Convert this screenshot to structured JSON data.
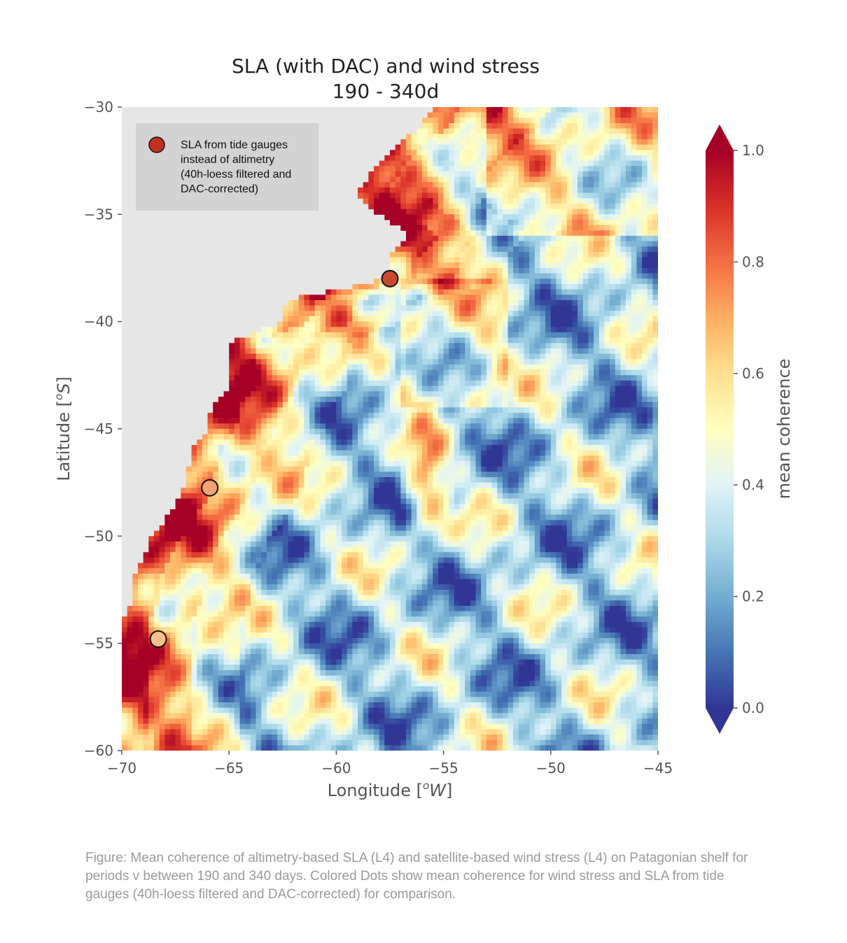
{
  "chart_data": {
    "type": "heatmap",
    "title_line1": "SLA (with DAC) and wind stress",
    "title_line2": "190 - 340d",
    "xlabel": "Longitude [$^oW$]",
    "xlabel_main": "Longitude [",
    "xlabel_sup": "o",
    "xlabel_unit": "W",
    "xlabel_end": "]",
    "ylabel_main": "Latitude [",
    "ylabel_sup": "o",
    "ylabel_unit": "S",
    "ylabel_end": "]",
    "xlim": [
      -70,
      -45
    ],
    "ylim": [
      -60,
      -30
    ],
    "xticks": [
      -70,
      -65,
      -60,
      -55,
      -50,
      -45
    ],
    "yticks": [
      -30,
      -35,
      -40,
      -45,
      -50,
      -55,
      -60
    ],
    "xtick_labels": [
      "−70",
      "−65",
      "−60",
      "−55",
      "−50",
      "−45"
    ],
    "ytick_labels": [
      "−30",
      "−35",
      "−40",
      "−45",
      "−50",
      "−55",
      "−60"
    ],
    "colorbar": {
      "label": "mean coherence",
      "range": [
        0.0,
        1.0
      ],
      "ticks": [
        0.0,
        0.2,
        0.4,
        0.6,
        0.8,
        1.0
      ],
      "tick_labels": [
        "0.0",
        "0.2",
        "0.4",
        "0.6",
        "0.8",
        "1.0"
      ],
      "colormap": "RdYlBu_r"
    },
    "legend": {
      "text_lines": [
        "SLA from tide gauges",
        "instead of altimetry",
        "(40h-loess filtered and",
        "DAC-corrected)"
      ],
      "position": "top-left",
      "marker_color": "#c3301f"
    },
    "tide_gauges": [
      {
        "lon": -57.5,
        "lat": -38.0,
        "coherence": 0.88,
        "color": "#c84a2d"
      },
      {
        "lon": -65.9,
        "lat": -47.75,
        "coherence": 0.72,
        "color": "#f3a271"
      },
      {
        "lon": -68.3,
        "lat": -54.8,
        "coherence": 0.66,
        "color": "#f7c08c"
      }
    ],
    "land_color": "#e6e6e6",
    "coast_boundary": [
      [
        -30,
        -55.4
      ],
      [
        -31,
        -56.2
      ],
      [
        -32,
        -57.5
      ],
      [
        -33,
        -58.3
      ],
      [
        -34,
        -59.0
      ],
      [
        -35,
        -58.0
      ],
      [
        -36,
        -56.5
      ],
      [
        -37,
        -57.5
      ],
      [
        -38,
        -57.6
      ],
      [
        -39,
        -62.3
      ],
      [
        -40,
        -62.5
      ],
      [
        -41,
        -65.0
      ],
      [
        -42,
        -65.0
      ],
      [
        -43,
        -65.0
      ],
      [
        -44,
        -65.8
      ],
      [
        -45,
        -66.0
      ],
      [
        -46,
        -66.8
      ],
      [
        -47,
        -66.9
      ],
      [
        -48,
        -67.2
      ],
      [
        -49,
        -67.8
      ],
      [
        -50,
        -68.6
      ],
      [
        -51,
        -69.0
      ],
      [
        -52,
        -69.5
      ],
      [
        -53,
        -69.5
      ],
      [
        -54,
        -70.0
      ],
      [
        -55,
        -70.0
      ],
      [
        -56,
        -70.0
      ],
      [
        -57,
        -70.0
      ],
      [
        -58,
        -70.0
      ],
      [
        -59,
        -70.0
      ],
      [
        -60,
        -70.0
      ]
    ]
  },
  "caption": {
    "text": "Figure: Mean coherence of altimetry-based SLA (L4) and satellite-based wind stress (L4) on Patagonian shelf for periods v between 190 and 340 days. Colored Dots show mean coherence for wind stress and SLA from tide gauges (40h-loess filtered and DAC-corrected) for comparison."
  }
}
